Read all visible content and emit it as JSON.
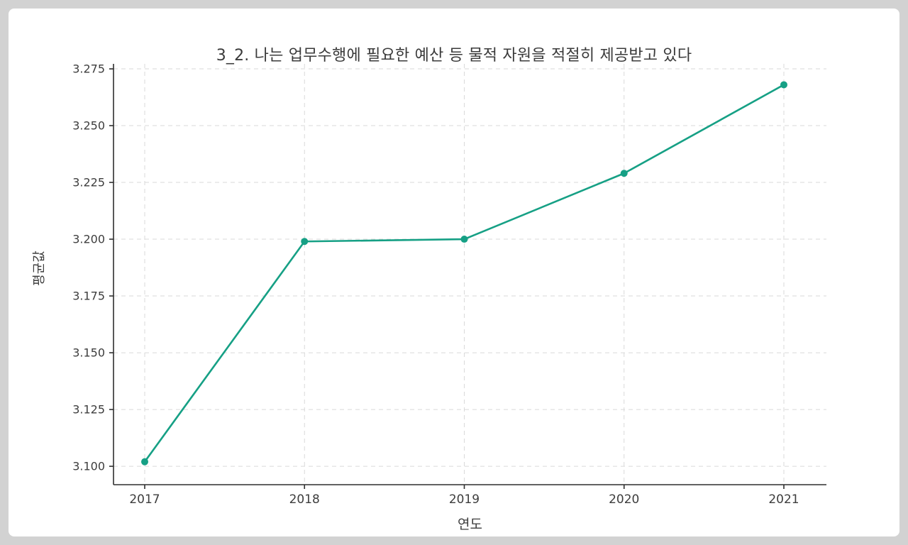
{
  "frame": {
    "background_color": "#d2d2d2",
    "card_color": "#ffffff"
  },
  "chart_data": {
    "type": "line",
    "title": "3_2. 나는 업무수행에 필요한 예산 등 물적 자원을 적절히 제공받고 있다",
    "xlabel": "연도",
    "ylabel": "평균값",
    "categories": [
      "2017",
      "2018",
      "2019",
      "2020",
      "2021"
    ],
    "series": [
      {
        "name": "평균값",
        "color": "#16a085",
        "values": [
          3.102,
          3.199,
          3.2,
          3.229,
          3.268
        ]
      }
    ],
    "yticks": [
      3.1,
      3.125,
      3.15,
      3.175,
      3.2,
      3.225,
      3.25,
      3.275
    ],
    "ylim": [
      3.0919,
      3.2772
    ],
    "grid": true,
    "grid_style": "dashed",
    "grid_color": "#d9d9d9",
    "axis_color": "#2f2f2f",
    "tick_label_color": "#3d3d3d",
    "title_color": "#3a3a3a",
    "legend_position": "none"
  }
}
